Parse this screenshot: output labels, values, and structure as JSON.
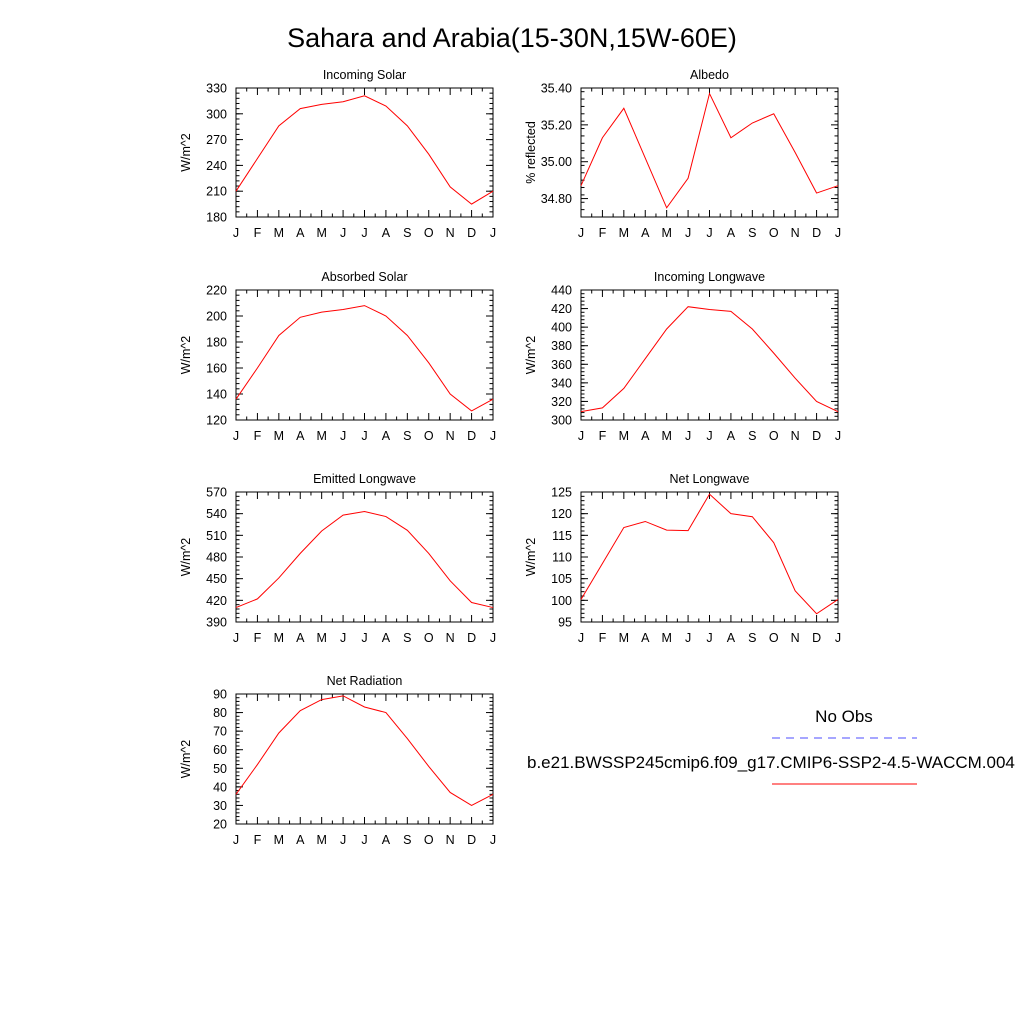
{
  "page_title": "Sahara and Arabia(15-30N,15W-60E)",
  "month_labels": [
    "J",
    "F",
    "M",
    "A",
    "M",
    "J",
    "J",
    "A",
    "S",
    "O",
    "N",
    "D",
    "J"
  ],
  "legend": {
    "obs_label": "No Obs",
    "model_label": "b.e21.BWSSP245cmip6.f09_g17.CMIP6-SSP2-4.5-WACCM.004"
  },
  "colors": {
    "model_line": "#ff0000",
    "obs_line": "#4d4dff",
    "axis": "#000000"
  },
  "chart_data": [
    {
      "type": "line",
      "title": "Incoming Solar",
      "ylabel": "W/m^2",
      "ylim": [
        180,
        330
      ],
      "yticks": [
        180,
        210,
        240,
        270,
        300,
        330
      ],
      "ytick_labels": [
        "180",
        "210",
        "240",
        "270",
        "300",
        "330"
      ],
      "categories": [
        "J",
        "F",
        "M",
        "A",
        "M",
        "J",
        "J",
        "A",
        "S",
        "O",
        "N",
        "D",
        "J"
      ],
      "series": [
        {
          "values": [
            210,
            248,
            286,
            306,
            311,
            314,
            321,
            309,
            286,
            253,
            215,
            195,
            210
          ]
        }
      ]
    },
    {
      "type": "line",
      "title": "Albedo",
      "ylabel": "% reflected",
      "ylim": [
        34.7,
        35.4
      ],
      "yticks": [
        34.8,
        35.0,
        35.2,
        35.4
      ],
      "ytick_labels": [
        "34.80",
        "35.00",
        "35.20",
        "35.40"
      ],
      "categories": [
        "J",
        "F",
        "M",
        "A",
        "M",
        "J",
        "J",
        "A",
        "S",
        "O",
        "N",
        "D",
        "J"
      ],
      "series": [
        {
          "values": [
            34.87,
            35.13,
            35.29,
            35.02,
            34.75,
            34.91,
            35.37,
            35.13,
            35.21,
            35.26,
            35.05,
            34.83,
            34.87
          ]
        }
      ]
    },
    {
      "type": "line",
      "title": "Absorbed Solar",
      "ylabel": "W/m^2",
      "ylim": [
        120,
        220
      ],
      "yticks": [
        120,
        140,
        160,
        180,
        200,
        220
      ],
      "ytick_labels": [
        "120",
        "140",
        "160",
        "180",
        "200",
        "220"
      ],
      "categories": [
        "J",
        "F",
        "M",
        "A",
        "M",
        "J",
        "J",
        "A",
        "S",
        "O",
        "N",
        "D",
        "J"
      ],
      "series": [
        {
          "values": [
            136,
            160,
            185,
            199,
            203,
            205,
            208,
            200,
            185,
            164,
            140,
            127,
            136
          ]
        }
      ]
    },
    {
      "type": "line",
      "title": "Incoming Longwave",
      "ylabel": "W/m^2",
      "ylim": [
        300,
        440
      ],
      "yticks": [
        300,
        320,
        340,
        360,
        380,
        400,
        420,
        440
      ],
      "ytick_labels": [
        "300",
        "320",
        "340",
        "360",
        "380",
        "400",
        "420",
        "440"
      ],
      "categories": [
        "J",
        "F",
        "M",
        "A",
        "M",
        "J",
        "J",
        "A",
        "S",
        "O",
        "N",
        "D",
        "J"
      ],
      "series": [
        {
          "values": [
            309,
            313,
            334,
            366,
            398,
            422,
            419,
            417,
            398,
            372,
            345,
            320,
            309
          ]
        }
      ]
    },
    {
      "type": "line",
      "title": "Emitted Longwave",
      "ylabel": "W/m^2",
      "ylim": [
        390,
        570
      ],
      "yticks": [
        390,
        420,
        450,
        480,
        510,
        540,
        570
      ],
      "ytick_labels": [
        "390",
        "420",
        "450",
        "480",
        "510",
        "540",
        "570"
      ],
      "categories": [
        "J",
        "F",
        "M",
        "A",
        "M",
        "J",
        "J",
        "A",
        "S",
        "O",
        "N",
        "D",
        "J"
      ],
      "series": [
        {
          "values": [
            410,
            422,
            451,
            485,
            516,
            538,
            543,
            536,
            517,
            485,
            447,
            417,
            410
          ]
        }
      ]
    },
    {
      "type": "line",
      "title": "Net Longwave",
      "ylabel": "W/m^2",
      "ylim": [
        95,
        125
      ],
      "yticks": [
        95,
        100,
        105,
        110,
        115,
        120,
        125
      ],
      "ytick_labels": [
        "95",
        "100",
        "105",
        "110",
        "115",
        "120",
        "125"
      ],
      "categories": [
        "J",
        "F",
        "M",
        "A",
        "M",
        "J",
        "J",
        "A",
        "S",
        "O",
        "N",
        "D",
        "J"
      ],
      "series": [
        {
          "values": [
            100.2,
            108.5,
            116.8,
            118.2,
            116.2,
            116.1,
            124.5,
            120.0,
            119.3,
            113.3,
            102.2,
            96.9,
            100.2
          ]
        }
      ]
    },
    {
      "type": "line",
      "title": "Net Radiation",
      "ylabel": "W/m^2",
      "ylim": [
        20,
        90
      ],
      "yticks": [
        20,
        30,
        40,
        50,
        60,
        70,
        80,
        90
      ],
      "ytick_labels": [
        "20",
        "30",
        "40",
        "50",
        "60",
        "70",
        "80",
        "90"
      ],
      "categories": [
        "J",
        "F",
        "M",
        "A",
        "M",
        "J",
        "J",
        "A",
        "S",
        "O",
        "N",
        "D",
        "J"
      ],
      "series": [
        {
          "values": [
            36,
            52,
            69,
            81,
            87,
            89,
            83,
            80,
            66,
            51,
            37,
            30,
            36
          ]
        }
      ]
    }
  ]
}
